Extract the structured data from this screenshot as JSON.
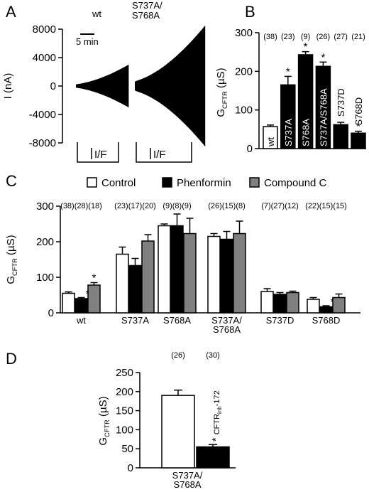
{
  "colors": {
    "control": "#ffffff",
    "phenformin": "#000000",
    "compound_c": "#808080",
    "stroke": "#000000"
  },
  "chart_data": [
    {
      "panel": "A",
      "type": "area",
      "ylabel": "I (nA)",
      "yticks": [
        "8000",
        "4000",
        "0",
        "-4000",
        "-8000"
      ],
      "ylim": [
        -9000,
        9000
      ],
      "traces": [
        {
          "label": "wt",
          "duration_min": 12,
          "peak_nA": 2800
        },
        {
          "label": "S737A/ S768A",
          "duration_min": 16,
          "peak_nA": 7900
        }
      ],
      "scalebar_label": "5 min",
      "scalebar_min": 5,
      "stim_label": "I/F",
      "grid": false
    },
    {
      "panel": "B",
      "type": "bar",
      "ylabel": "G",
      "ylabel_sub": "CFTR",
      "ylabel_unit": "(µS)",
      "yticks": [
        "0",
        "100",
        "200",
        "300"
      ],
      "ylim": [
        0,
        300
      ],
      "categories": [
        "wt",
        "S737A",
        "S768A",
        "S737A/S768A",
        "S737D",
        "S768D"
      ],
      "values": [
        57,
        165,
        243,
        213,
        62,
        40
      ],
      "errors": [
        4,
        22,
        8,
        11,
        6,
        5
      ],
      "n": [
        "(38)",
        "(23)",
        "(9)",
        "(26)",
        "(27)",
        "(21)"
      ],
      "significant": [
        false,
        true,
        true,
        true,
        false,
        true
      ],
      "grid": false
    },
    {
      "panel": "C",
      "type": "bar",
      "ylabel": "G",
      "ylabel_sub": "CFTR",
      "ylabel_unit": "(µS)",
      "yticks": [
        "0",
        "100",
        "200",
        "300"
      ],
      "ylim": [
        0,
        300
      ],
      "legend": {
        "position": "top",
        "entries": [
          "Control",
          "Phenformin",
          "Compound C"
        ]
      },
      "categories": [
        "wt",
        "S737A",
        "S768A",
        "S737A/ S768A",
        "S737D",
        "S768D"
      ],
      "series": [
        {
          "name": "Control",
          "values": [
            55,
            165,
            245,
            215,
            60,
            38
          ],
          "errors": [
            4,
            20,
            5,
            8,
            8,
            5
          ],
          "n": [
            "(38)",
            "(23)",
            "(9)",
            "(26)",
            "(7)",
            "(22)"
          ],
          "significant": [
            false,
            false,
            false,
            false,
            false,
            false
          ]
        },
        {
          "name": "Phenformin",
          "values": [
            40,
            133,
            245,
            207,
            52,
            17
          ],
          "errors": [
            3,
            20,
            33,
            22,
            5,
            3
          ],
          "n": [
            "(28)",
            "(17)",
            "(8)",
            "(15)",
            "(27)",
            "(15)"
          ],
          "significant": [
            true,
            false,
            false,
            false,
            false,
            true
          ]
        },
        {
          "name": "Compound C",
          "values": [
            78,
            202,
            223,
            223,
            57,
            43
          ],
          "errors": [
            7,
            18,
            43,
            35,
            4,
            10
          ],
          "n": [
            "(18)",
            "(20)",
            "(9)",
            "(8)",
            "(12)",
            "(15)"
          ],
          "significant": [
            true,
            false,
            false,
            false,
            false,
            false
          ]
        }
      ],
      "grid": false
    },
    {
      "panel": "D",
      "type": "bar",
      "ylabel": "G",
      "ylabel_sub": "CFTR",
      "ylabel_unit": "(µS)",
      "yticks": [
        "0",
        "50",
        "100",
        "150",
        "200",
        "250"
      ],
      "ylim": [
        0,
        250
      ],
      "category": "S737A/ S768A",
      "values": [
        190,
        55
      ],
      "errors": [
        14,
        6
      ],
      "n": [
        "(26)",
        "(30)"
      ],
      "significant": [
        false,
        true
      ],
      "bar_annotation": "CFTR",
      "bar_annotation_sub": "inh",
      "bar_annotation_suffix": "-172",
      "grid": false
    }
  ]
}
